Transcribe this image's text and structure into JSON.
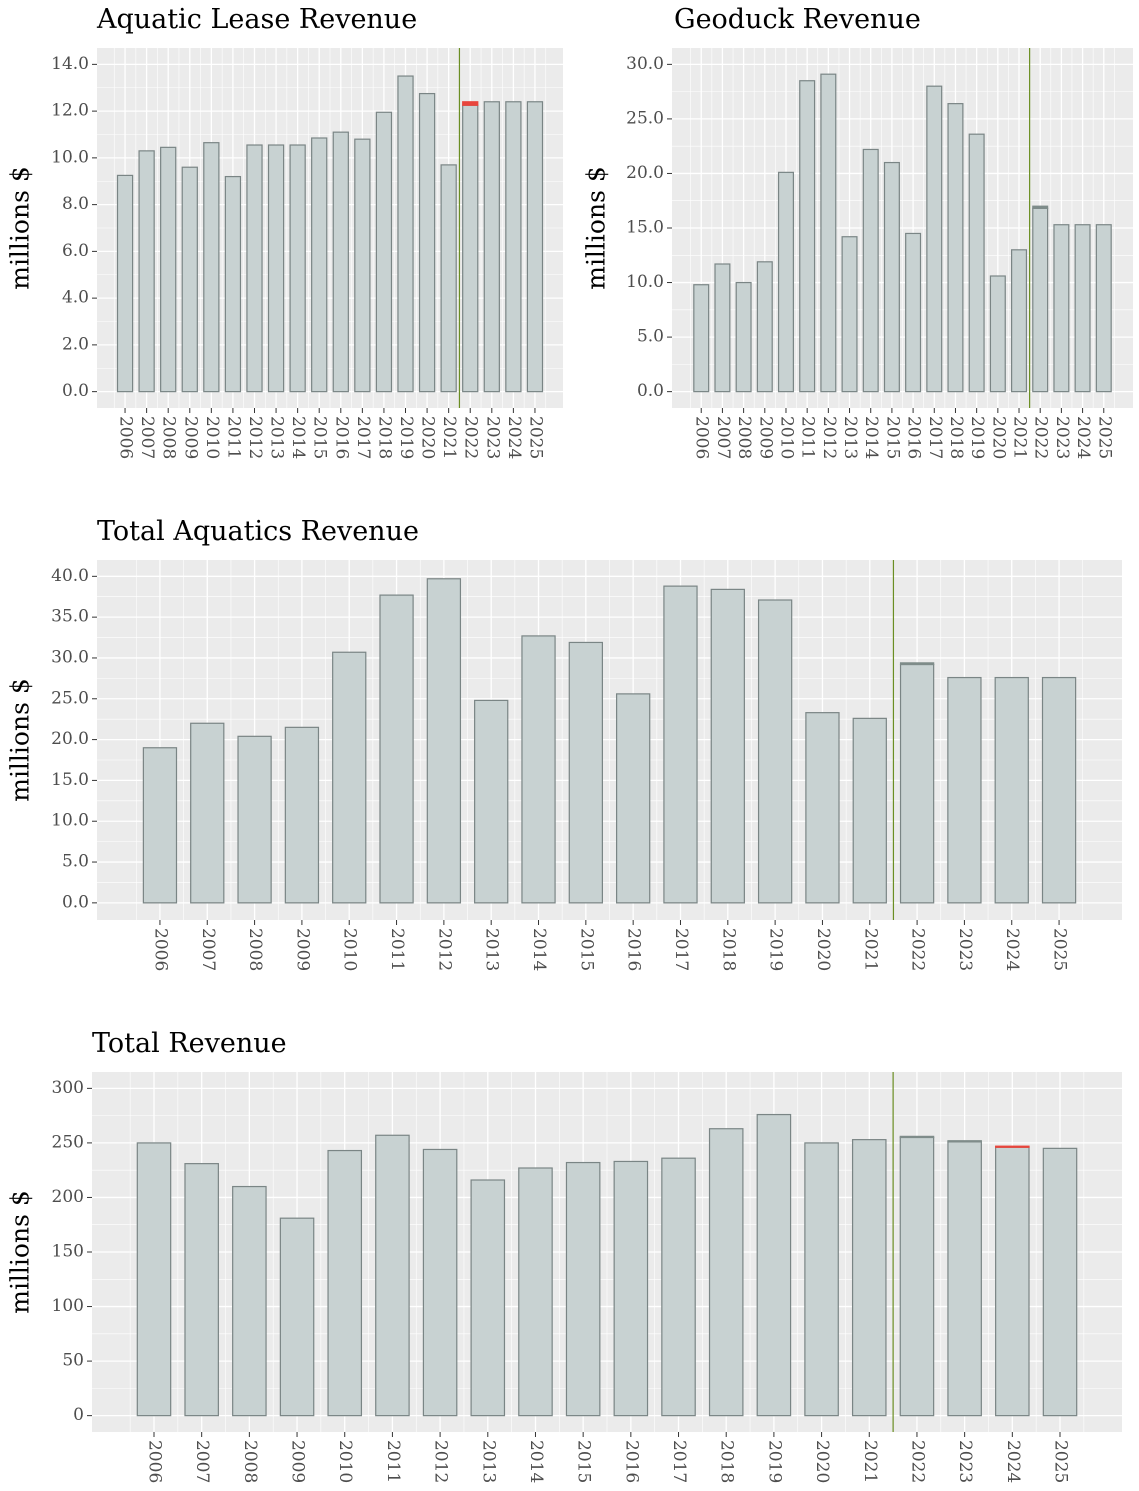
{
  "chart_data": [
    {
      "type": "bar",
      "title": "Aquatic Lease Revenue",
      "y_label": "millions $",
      "categories": [
        "2006",
        "2007",
        "2008",
        "2009",
        "2010",
        "2011",
        "2012",
        "2013",
        "2014",
        "2015",
        "2016",
        "2017",
        "2018",
        "2019",
        "2020",
        "2021",
        "2022",
        "2023",
        "2024",
        "2025"
      ],
      "series": [
        {
          "color": "#c8d2d2",
          "values": [
            9.25,
            10.3,
            10.45,
            9.6,
            10.65,
            9.2,
            10.55,
            10.55,
            10.55,
            10.85,
            11.1,
            10.8,
            11.95,
            13.5,
            12.75,
            9.7,
            12.25,
            12.4,
            12.4,
            12.4
          ]
        },
        {
          "color": "#e8453c",
          "values": [
            0,
            0,
            0,
            0,
            0,
            0,
            0,
            0,
            0,
            0,
            0,
            0,
            0,
            0,
            0,
            0,
            0.15,
            0,
            0,
            0
          ]
        },
        {
          "color": "#7f8c8a",
          "values": [
            0,
            0,
            0,
            0,
            0,
            0,
            0,
            0,
            0,
            0,
            0,
            0,
            0,
            0,
            0,
            0,
            0,
            0,
            0,
            0
          ]
        }
      ],
      "stacked": true,
      "ylim": [
        -0.7,
        14.7
      ],
      "yticks": [
        {
          "value": 0,
          "label": "0.0"
        },
        {
          "value": 2,
          "label": "2.0"
        },
        {
          "value": 4,
          "label": "4.0"
        },
        {
          "value": 6,
          "label": "6.0"
        },
        {
          "value": 8,
          "label": "8.0"
        },
        {
          "value": 10,
          "label": "10.0"
        },
        {
          "value": 12,
          "label": "12.0"
        },
        {
          "value": 14,
          "label": "14.0"
        }
      ],
      "grid": true,
      "vline": {
        "after": "2021",
        "color": "#6b8e23"
      }
    },
    {
      "type": "bar",
      "title": "Geoduck Revenue",
      "y_label": "millions $",
      "categories": [
        "2006",
        "2007",
        "2008",
        "2009",
        "2010",
        "2011",
        "2012",
        "2013",
        "2014",
        "2015",
        "2016",
        "2017",
        "2018",
        "2019",
        "2020",
        "2021",
        "2022",
        "2023",
        "2024",
        "2025"
      ],
      "series": [
        {
          "color": "#c8d2d2",
          "values": [
            9.8,
            11.7,
            10.0,
            11.9,
            20.1,
            28.5,
            29.1,
            14.2,
            22.2,
            21.0,
            14.5,
            28.0,
            26.4,
            23.6,
            10.6,
            13.0,
            16.8,
            15.3,
            15.3,
            15.3
          ]
        },
        {
          "color": "#e8453c",
          "values": [
            0,
            0,
            0,
            0,
            0,
            0,
            0,
            0,
            0,
            0,
            0,
            0,
            0,
            0,
            0,
            0,
            0,
            0,
            0,
            0
          ]
        },
        {
          "color": "#7f8c8a",
          "values": [
            0,
            0,
            0,
            0,
            0,
            0,
            0,
            0,
            0,
            0,
            0,
            0,
            0,
            0,
            0,
            0,
            0.2,
            0,
            0,
            0
          ]
        }
      ],
      "stacked": true,
      "ylim": [
        -1.5,
        31.5
      ],
      "yticks": [
        {
          "value": 0,
          "label": "0.0"
        },
        {
          "value": 5,
          "label": "5.0"
        },
        {
          "value": 10,
          "label": "10.0"
        },
        {
          "value": 15,
          "label": "15.0"
        },
        {
          "value": 20,
          "label": "20.0"
        },
        {
          "value": 25,
          "label": "25.0"
        },
        {
          "value": 30,
          "label": "30.0"
        }
      ],
      "grid": true,
      "vline": {
        "after": "2021",
        "color": "#6b8e23"
      }
    },
    {
      "type": "bar",
      "title": "Total Aquatics Revenue",
      "y_label": "millions $",
      "categories": [
        "2006",
        "2007",
        "2008",
        "2009",
        "2010",
        "2011",
        "2012",
        "2013",
        "2014",
        "2015",
        "2016",
        "2017",
        "2018",
        "2019",
        "2020",
        "2021",
        "2022",
        "2023",
        "2024",
        "2025"
      ],
      "series": [
        {
          "color": "#c8d2d2",
          "values": [
            19.0,
            22.0,
            20.4,
            21.5,
            30.7,
            37.7,
            39.7,
            24.8,
            32.7,
            31.9,
            25.6,
            38.8,
            38.4,
            37.1,
            23.3,
            22.6,
            29.2,
            27.6,
            27.6,
            27.6
          ]
        },
        {
          "color": "#e8453c",
          "values": [
            0,
            0,
            0,
            0,
            0,
            0,
            0,
            0,
            0,
            0,
            0,
            0,
            0,
            0,
            0,
            0,
            0,
            0,
            0,
            0
          ]
        },
        {
          "color": "#7f8c8a",
          "values": [
            0,
            0,
            0,
            0,
            0,
            0,
            0,
            0,
            0,
            0,
            0,
            0,
            0,
            0,
            0,
            0,
            0.2,
            0,
            0,
            0
          ]
        }
      ],
      "stacked": true,
      "ylim": [
        -2.1,
        42
      ],
      "yticks": [
        {
          "value": 0,
          "label": "0.0"
        },
        {
          "value": 5,
          "label": "5.0"
        },
        {
          "value": 10,
          "label": "10.0"
        },
        {
          "value": 15,
          "label": "15.0"
        },
        {
          "value": 20,
          "label": "20.0"
        },
        {
          "value": 25,
          "label": "25.0"
        },
        {
          "value": 30,
          "label": "30.0"
        },
        {
          "value": 35,
          "label": "35.0"
        },
        {
          "value": 40,
          "label": "40.0"
        }
      ],
      "grid": true,
      "vline": {
        "after": "2021",
        "color": "#6b8e23"
      }
    },
    {
      "type": "bar",
      "title": "Total Revenue",
      "y_label": "millions $",
      "categories": [
        "2006",
        "2007",
        "2008",
        "2009",
        "2010",
        "2011",
        "2012",
        "2013",
        "2014",
        "2015",
        "2016",
        "2017",
        "2018",
        "2019",
        "2020",
        "2021",
        "2022",
        "2023",
        "2024",
        "2025"
      ],
      "series": [
        {
          "color": "#c8d2d2",
          "values": [
            250,
            231,
            210,
            181,
            243,
            257,
            244,
            216,
            227,
            232,
            233,
            236,
            263,
            276,
            250,
            253,
            255,
            251,
            246,
            245
          ]
        },
        {
          "color": "#e8453c",
          "values": [
            0,
            0,
            0,
            0,
            0,
            0,
            0,
            0,
            0,
            0,
            0,
            0,
            0,
            0,
            0,
            0,
            0,
            0,
            1,
            0
          ]
        },
        {
          "color": "#7f8c8a",
          "values": [
            0,
            0,
            0,
            0,
            0,
            0,
            0,
            0,
            0,
            0,
            0,
            0,
            0,
            0,
            0,
            0,
            1,
            1,
            0,
            0
          ]
        }
      ],
      "stacked": true,
      "ylim": [
        -15,
        315
      ],
      "yticks": [
        0,
        50,
        100,
        150,
        200,
        250,
        300
      ],
      "grid": true,
      "vline": {
        "after": "2021",
        "color": "#6b8e23"
      }
    }
  ]
}
